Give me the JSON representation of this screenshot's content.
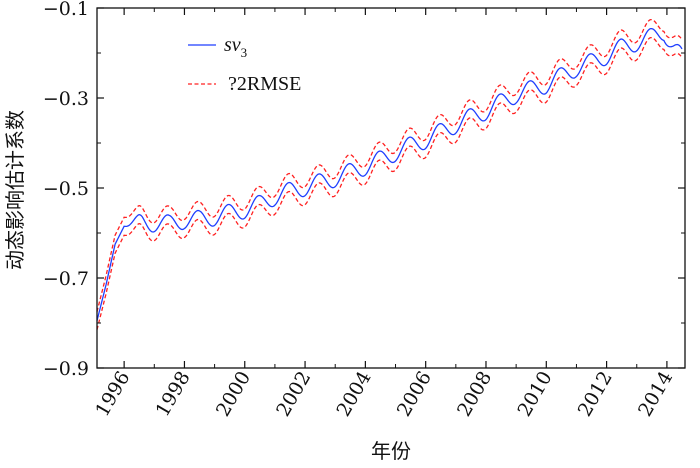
{
  "chart_data": {
    "type": "line",
    "title": "",
    "xlabel": "年份",
    "ylabel": "动态影响估计系数",
    "xlim": [
      1995.1,
      2014.6
    ],
    "ylim": [
      -0.9,
      -0.1
    ],
    "xticks": [
      1996,
      1998,
      2000,
      2002,
      2004,
      2006,
      2008,
      2010,
      2012,
      2014
    ],
    "xtick_labels": [
      "1996",
      "1998",
      "2000",
      "2002",
      "2004",
      "2006",
      "2008",
      "2010",
      "2012",
      "2014"
    ],
    "yticks": [
      -0.9,
      -0.7,
      -0.5,
      -0.3,
      -0.1
    ],
    "ytick_labels": [
      "−0.9",
      "−0.7",
      "−0.5",
      "−0.3",
      "−0.1"
    ],
    "grid": false,
    "legend_position": "top-left",
    "legend": {
      "sv_base": "sv",
      "sv_sub": "3",
      "band_label": "?2RMSE"
    },
    "series": [
      {
        "name": "sv3",
        "style": "solid",
        "color": "#1f3fff",
        "x": [
          1995.1,
          1995.4,
          1995.7,
          1996.0,
          1996.5,
          1997.0,
          1997.5,
          1998.0,
          1998.5,
          1999.0,
          1999.5,
          2000.0,
          2000.5,
          2001.0,
          2001.5,
          2002.0,
          2002.5,
          2003.0,
          2003.5,
          2004.0,
          2004.5,
          2005.0,
          2005.5,
          2006.0,
          2006.5,
          2007.0,
          2007.5,
          2008.0,
          2008.5,
          2009.0,
          2009.5,
          2010.0,
          2010.5,
          2011.0,
          2011.5,
          2012.0,
          2012.5,
          2013.0,
          2013.5,
          2013.9,
          2014.2,
          2014.5
        ],
        "y": [
          -0.795,
          -0.715,
          -0.625,
          -0.585,
          -0.575,
          -0.578,
          -0.58,
          -0.571,
          -0.57,
          -0.564,
          -0.556,
          -0.548,
          -0.536,
          -0.519,
          -0.507,
          -0.498,
          -0.488,
          -0.478,
          -0.465,
          -0.452,
          -0.437,
          -0.421,
          -0.406,
          -0.393,
          -0.376,
          -0.359,
          -0.343,
          -0.329,
          -0.31,
          -0.292,
          -0.281,
          -0.27,
          -0.252,
          -0.233,
          -0.221,
          -0.206,
          -0.188,
          -0.176,
          -0.165,
          -0.153,
          -0.185,
          -0.21
        ]
      },
      {
        "name": "upper ?2RMSE",
        "style": "dashed",
        "color": "#ff2020",
        "x": [
          1995.1,
          1995.4,
          1995.7,
          1996.0,
          1996.5,
          1997.0,
          1997.5,
          1998.0,
          1998.5,
          1999.0,
          1999.5,
          2000.0,
          2000.5,
          2001.0,
          2001.5,
          2002.0,
          2002.5,
          2003.0,
          2003.5,
          2004.0,
          2004.5,
          2005.0,
          2005.5,
          2006.0,
          2006.5,
          2007.0,
          2007.5,
          2008.0,
          2008.5,
          2009.0,
          2009.5,
          2010.0,
          2010.5,
          2011.0,
          2011.5,
          2012.0,
          2012.5,
          2013.0,
          2013.5,
          2013.9,
          2014.2,
          2014.5
        ],
        "y": [
          -0.775,
          -0.695,
          -0.605,
          -0.565,
          -0.555,
          -0.558,
          -0.56,
          -0.551,
          -0.55,
          -0.544,
          -0.536,
          -0.528,
          -0.516,
          -0.499,
          -0.487,
          -0.478,
          -0.468,
          -0.458,
          -0.445,
          -0.432,
          -0.417,
          -0.401,
          -0.386,
          -0.373,
          -0.356,
          -0.339,
          -0.323,
          -0.309,
          -0.29,
          -0.272,
          -0.261,
          -0.25,
          -0.232,
          -0.213,
          -0.201,
          -0.186,
          -0.168,
          -0.156,
          -0.145,
          -0.133,
          -0.165,
          -0.19
        ]
      },
      {
        "name": "lower ?2RMSE",
        "style": "dashed",
        "color": "#ff2020",
        "x": [
          1995.1,
          1995.4,
          1995.7,
          1996.0,
          1996.5,
          1997.0,
          1997.5,
          1998.0,
          1998.5,
          1999.0,
          1999.5,
          2000.0,
          2000.5,
          2001.0,
          2001.5,
          2002.0,
          2002.5,
          2003.0,
          2003.5,
          2004.0,
          2004.5,
          2005.0,
          2005.5,
          2006.0,
          2006.5,
          2007.0,
          2007.5,
          2008.0,
          2008.5,
          2009.0,
          2009.5,
          2010.0,
          2010.5,
          2011.0,
          2011.5,
          2012.0,
          2012.5,
          2013.0,
          2013.5,
          2013.9,
          2014.2,
          2014.5
        ],
        "y": [
          -0.815,
          -0.735,
          -0.645,
          -0.605,
          -0.595,
          -0.598,
          -0.6,
          -0.591,
          -0.59,
          -0.584,
          -0.576,
          -0.568,
          -0.556,
          -0.539,
          -0.527,
          -0.518,
          -0.508,
          -0.498,
          -0.485,
          -0.472,
          -0.457,
          -0.441,
          -0.426,
          -0.413,
          -0.396,
          -0.379,
          -0.363,
          -0.349,
          -0.33,
          -0.312,
          -0.301,
          -0.29,
          -0.272,
          -0.253,
          -0.241,
          -0.226,
          -0.208,
          -0.196,
          -0.185,
          -0.173,
          -0.205,
          -0.23
        ]
      }
    ],
    "seasonal_oscillation": {
      "amplitude": 0.02,
      "cycles_per_year": 1
    }
  }
}
